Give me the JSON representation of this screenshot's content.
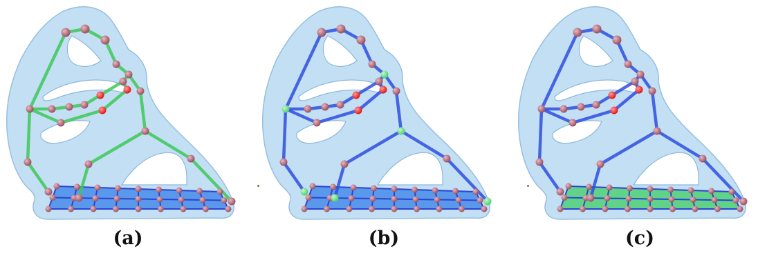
{
  "figure": {
    "panels": [
      {
        "id": "a",
        "caption": "(a)",
        "skeleton_color": "#3fc85a",
        "base_face_color": "#3f86e8",
        "base_edge_color": "#2c43d4",
        "junction_color": "#8c4a58"
      },
      {
        "id": "b",
        "caption": "(b)",
        "skeleton_color": "#2f4fe0",
        "base_face_color": "#3f86e8",
        "base_edge_color": "#2c43d4",
        "junction_color": "#4fd06a"
      },
      {
        "id": "c",
        "caption": "(c)",
        "skeleton_color": "#2f4fe0",
        "base_face_color": "#49d06e",
        "base_edge_color": "#2c43d4",
        "junction_color": "#8c4a58"
      }
    ],
    "colors": {
      "shape_fill": "#bcdcf3",
      "shape_stroke": "#8db7dc",
      "node": "#9a5060",
      "node_highlight": "#e01818"
    }
  }
}
